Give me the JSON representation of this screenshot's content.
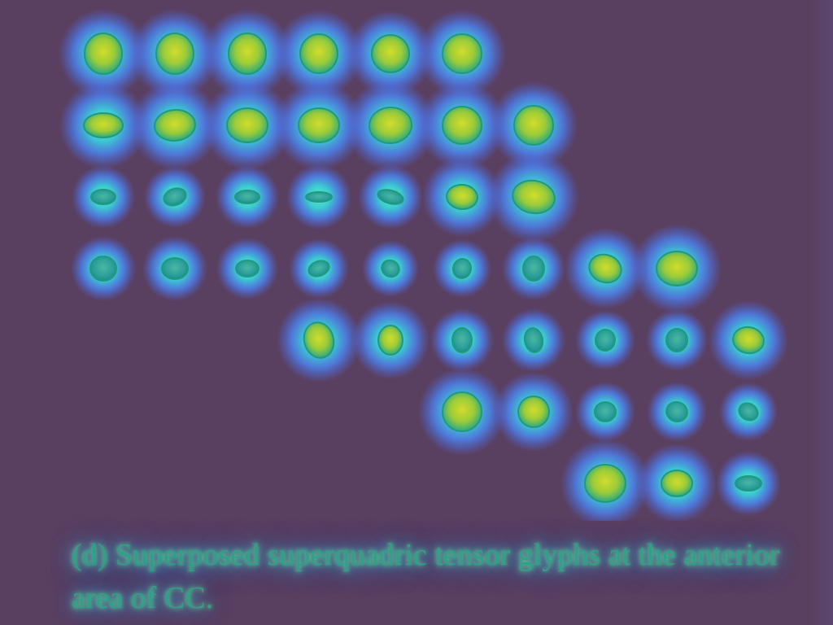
{
  "caption": {
    "text": "(d) Superposed superquadric tensor glyphs at the anterior area of CC."
  },
  "glyph_field": {
    "description_kind": "superquadric tensor glyph grid",
    "colors": {
      "background": "#5a4060",
      "halo_outer": "#4a8cff",
      "halo_inner": "#38d6c8",
      "glyph_rim": "#1f9a7c",
      "glyph_core": "#c8d830"
    }
  }
}
